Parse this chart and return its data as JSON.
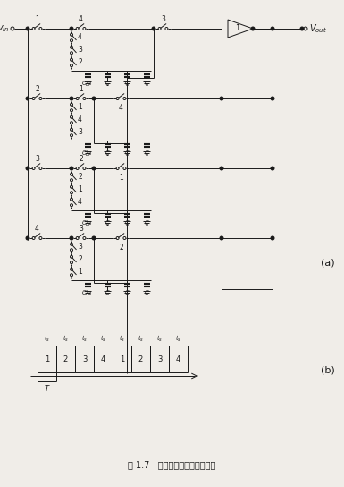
{
  "bg_color": "#f0ede8",
  "lc": "#1a1a1a",
  "title": "图 1.7   窄带开关电容带通滤波器",
  "label_a": "(a)",
  "label_b": "(b)"
}
